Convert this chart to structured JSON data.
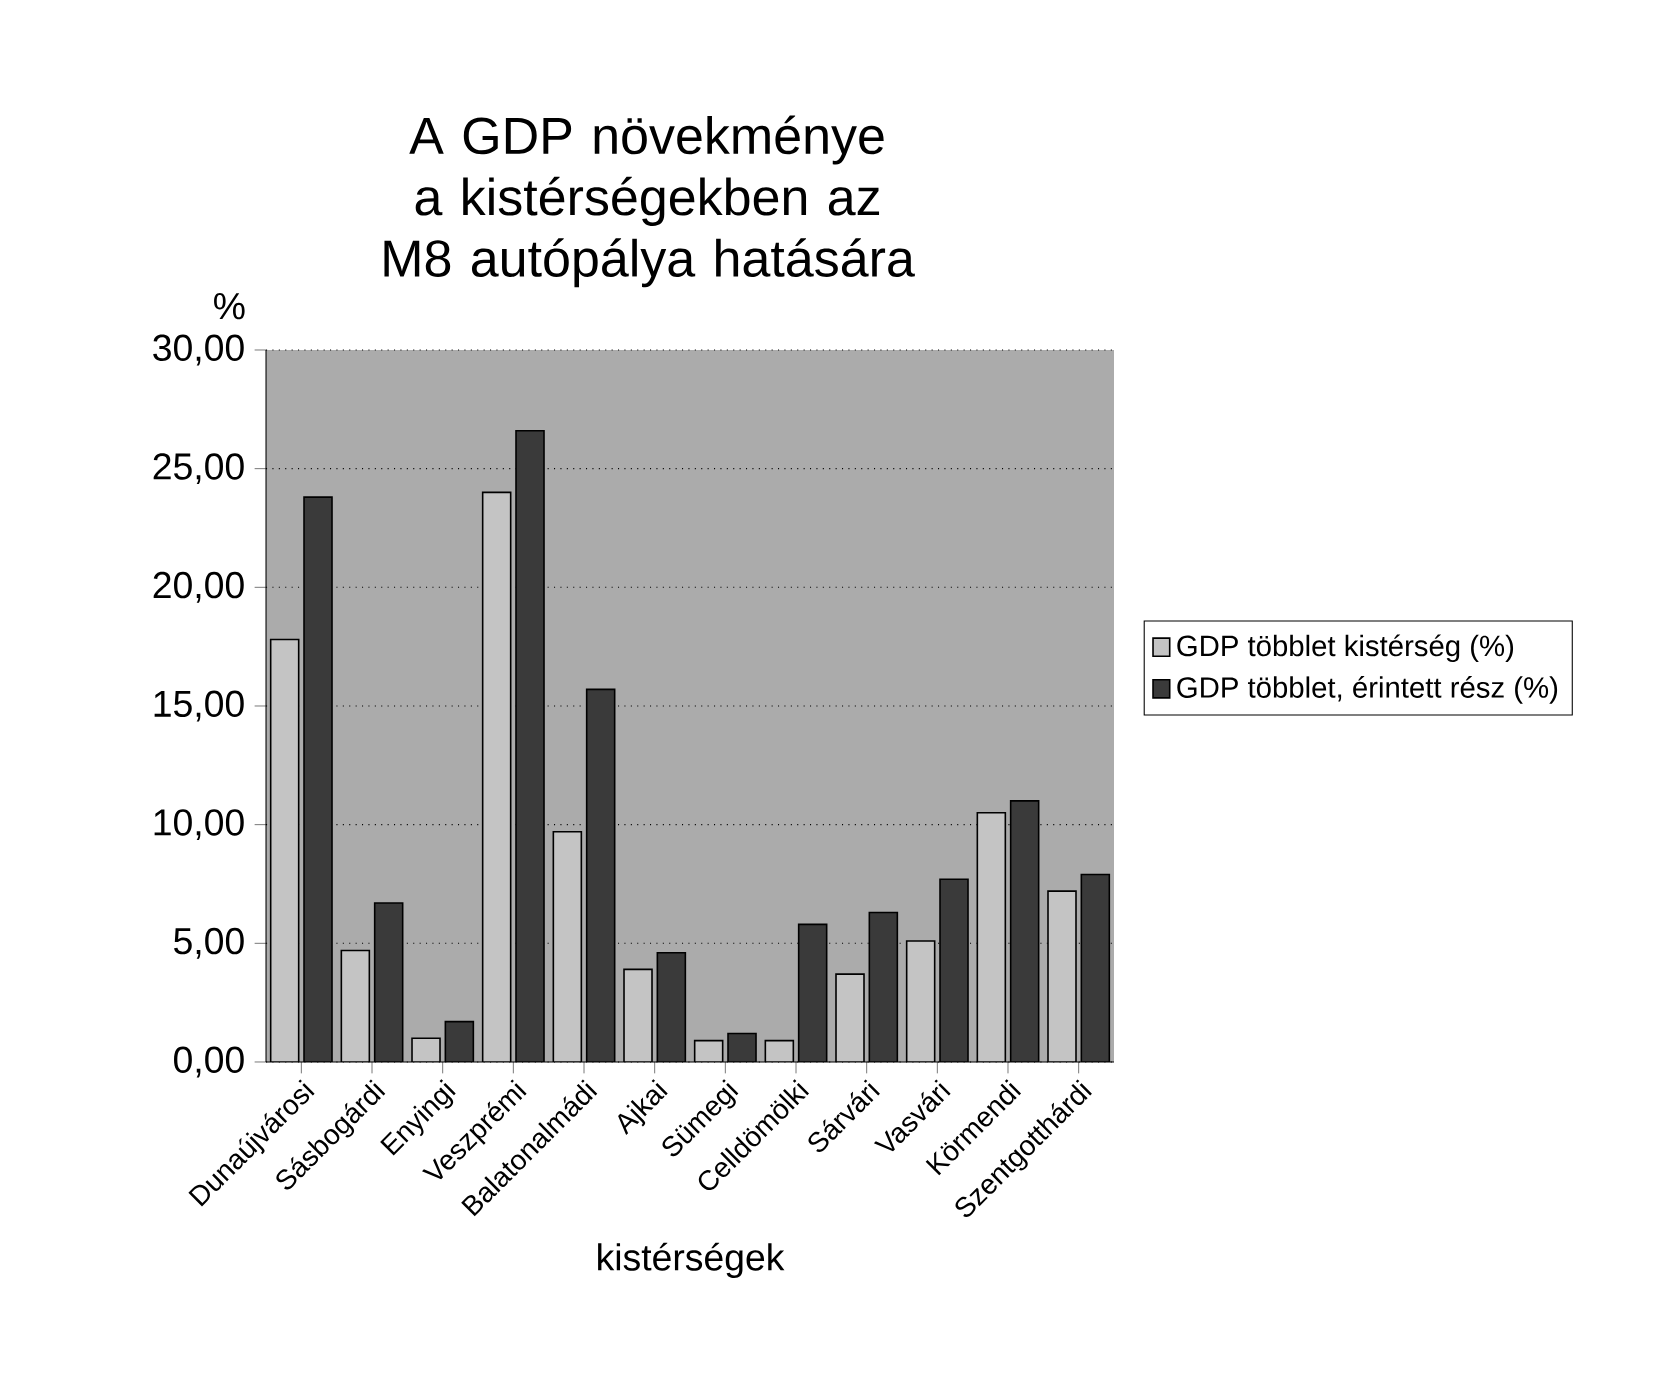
{
  "chart_data": {
    "type": "bar",
    "title": "A GDP növekménye a kistérségekben az M8 autópálya hatására",
    "xlabel": "kistérségek",
    "ylabel": "%",
    "categories": [
      "Dunaújvárosi",
      "Sásbogárdi",
      "Enyingi",
      "Veszprémi",
      "Balatonalmádi",
      "Ajkai",
      "Sümegi",
      "Celldömölki",
      "Sárvári",
      "Vasvári",
      "Körmendi",
      "Szentgotthárdi"
    ],
    "series": [
      {
        "name": "GDP többlet kistérség (%)",
        "color": "#c4c4c4",
        "values": [
          17.8,
          4.7,
          1.0,
          24.0,
          9.7,
          3.9,
          0.9,
          0.9,
          3.7,
          5.1,
          10.5,
          7.2
        ]
      },
      {
        "name": "GDP többlet, érintett rész (%)",
        "color": "#3a3a3a",
        "values": [
          23.8,
          6.7,
          1.7,
          26.6,
          15.7,
          4.6,
          1.2,
          5.8,
          6.3,
          7.7,
          11.0,
          7.9
        ]
      }
    ],
    "ylim": [
      0,
      30
    ],
    "yticks": [
      {
        "value": 0,
        "label": "0,00"
      },
      {
        "value": 5,
        "label": "5,00"
      },
      {
        "value": 10,
        "label": "10,00"
      },
      {
        "value": 15,
        "label": "15,00"
      },
      {
        "value": 20,
        "label": "20,00"
      },
      {
        "value": 25,
        "label": "25,00"
      },
      {
        "value": 30,
        "label": "30,00"
      }
    ],
    "grid": "y",
    "legend": "right"
  }
}
